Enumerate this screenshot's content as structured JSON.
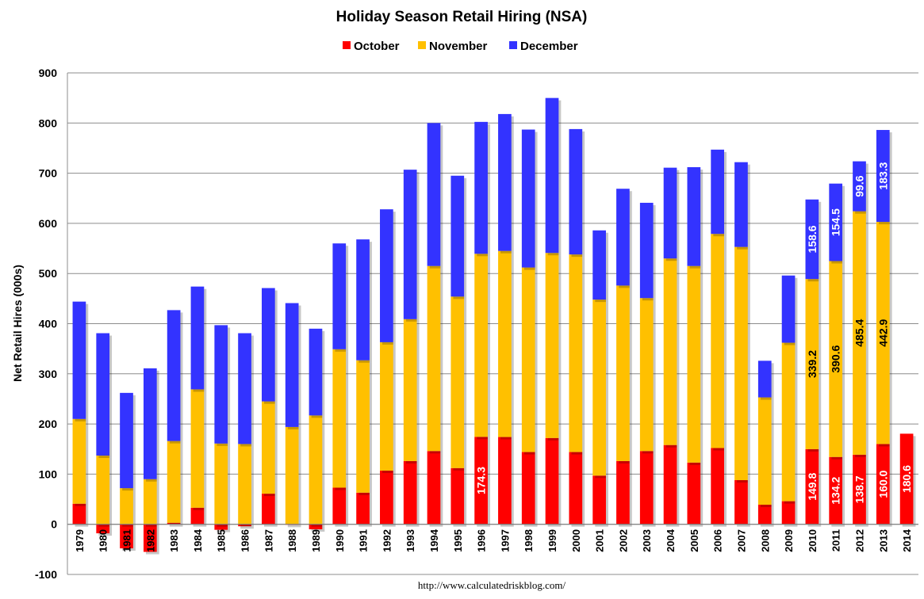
{
  "chart_data": {
    "type": "bar",
    "stacked": true,
    "title": "Holiday Season Retail Hiring (NSA)",
    "ylabel": "Net Retail Hires (000s)",
    "ylim": [
      -100,
      900
    ],
    "yticks": [
      -100,
      0,
      100,
      200,
      300,
      400,
      500,
      600,
      700,
      800,
      900
    ],
    "grid": true,
    "legend_position": "top-center",
    "footer": "http://www.calculatedriskblog.com/",
    "categories": [
      "1979",
      "1980",
      "1981",
      "1982",
      "1983",
      "1984",
      "1985",
      "1986",
      "1987",
      "1988",
      "1989",
      "1990",
      "1991",
      "1992",
      "1993",
      "1994",
      "1995",
      "1996",
      "1997",
      "1998",
      "1999",
      "2000",
      "2001",
      "2002",
      "2003",
      "2004",
      "2005",
      "2006",
      "2007",
      "2008",
      "2009",
      "2010",
      "2011",
      "2012",
      "2013",
      "2014"
    ],
    "series": [
      {
        "name": "October",
        "color": "#ff0000",
        "values": [
          41,
          -18,
          -48,
          -55,
          3,
          33,
          -11,
          -4,
          61,
          -1,
          -10,
          73,
          63,
          107,
          126,
          146,
          112,
          174.3,
          174,
          144,
          172,
          144,
          97,
          126,
          146,
          158,
          123,
          152,
          88,
          39,
          46,
          149.8,
          134.2,
          138.7,
          160.0,
          180.6
        ]
      },
      {
        "name": "November",
        "color": "#ffc000",
        "values": [
          169,
          137,
          72,
          90,
          163,
          236,
          161,
          160,
          184,
          194,
          217,
          276,
          264,
          256,
          283,
          369,
          342,
          365,
          371,
          368,
          369,
          394,
          351,
          350,
          305,
          372,
          392,
          427,
          465,
          214,
          316,
          339.2,
          390.6,
          485.4,
          442.9,
          null
        ]
      },
      {
        "name": "December",
        "color": "#3333ff",
        "values": [
          234,
          244,
          190,
          221,
          261,
          205,
          236,
          221,
          226,
          247,
          173,
          211,
          241,
          265,
          298,
          285,
          241,
          263,
          273,
          275,
          309,
          250,
          138,
          193,
          190,
          181,
          197,
          168,
          169,
          73,
          134,
          158.6,
          154.5,
          99.6,
          183.3,
          null
        ]
      }
    ],
    "data_labels": [
      {
        "category": "1996",
        "series": "October",
        "text": "174.3"
      },
      {
        "category": "2010",
        "series": "October",
        "text": "149.8"
      },
      {
        "category": "2011",
        "series": "October",
        "text": "134.2"
      },
      {
        "category": "2012",
        "series": "October",
        "text": "138.7"
      },
      {
        "category": "2013",
        "series": "October",
        "text": "160.0"
      },
      {
        "category": "2014",
        "series": "October",
        "text": "180.6"
      },
      {
        "category": "2010",
        "series": "November",
        "text": "339.2"
      },
      {
        "category": "2011",
        "series": "November",
        "text": "390.6"
      },
      {
        "category": "2012",
        "series": "November",
        "text": "485.4"
      },
      {
        "category": "2013",
        "series": "November",
        "text": "442.9"
      },
      {
        "category": "2010",
        "series": "December",
        "text": "158.6"
      },
      {
        "category": "2011",
        "series": "December",
        "text": "154.5"
      },
      {
        "category": "2012",
        "series": "December",
        "text": "99.6"
      },
      {
        "category": "2013",
        "series": "December",
        "text": "183.3"
      }
    ],
    "label_colors": {
      "October": "#ffffff",
      "November": "#000000",
      "December": "#ffffff"
    }
  }
}
